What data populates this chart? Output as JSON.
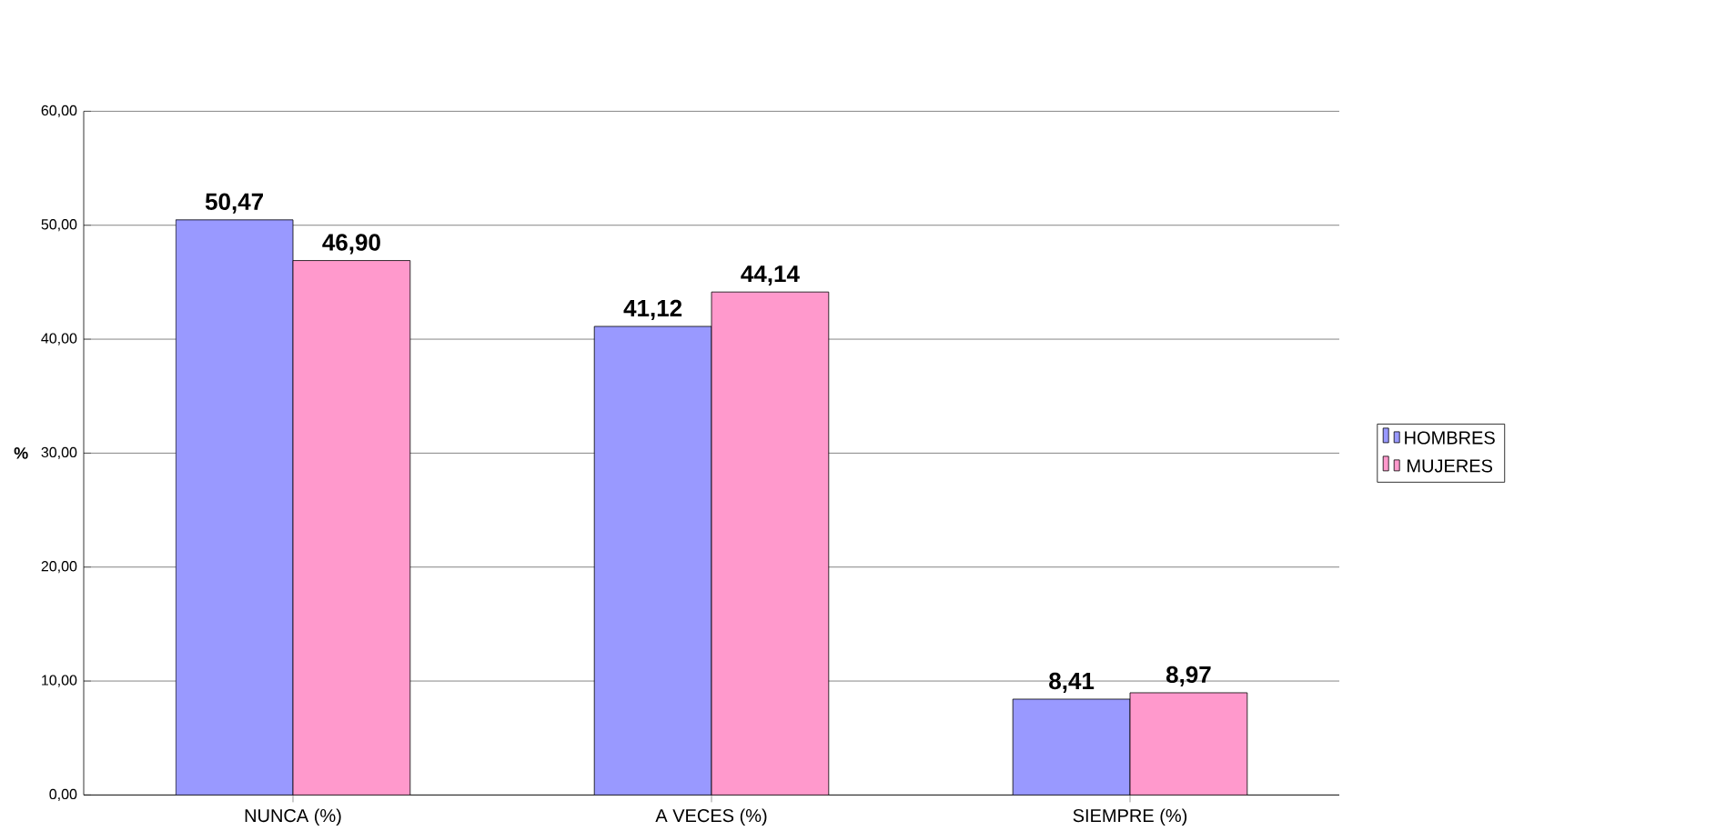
{
  "chart_data": {
    "type": "bar",
    "ylabel": "%",
    "categories": [
      "NUNCA (%)",
      "A VECES (%)",
      "SIEMPRE (%)"
    ],
    "series": [
      {
        "name": "HOMBRES",
        "color": "#9999ff",
        "values": [
          50.47,
          41.12,
          8.41
        ],
        "value_labels": [
          "50,47",
          "41,12",
          "8,41"
        ]
      },
      {
        "name": "MUJERES",
        "color": "#ff99cc",
        "values": [
          46.9,
          44.14,
          8.97
        ],
        "value_labels": [
          "46,90",
          "44,14",
          "8,97"
        ]
      }
    ],
    "ylim": [
      0,
      60
    ],
    "yticks": [
      {
        "value": 0,
        "label": "0,00"
      },
      {
        "value": 10,
        "label": "10,00"
      },
      {
        "value": 20,
        "label": "20,00"
      },
      {
        "value": 30,
        "label": "30,00"
      },
      {
        "value": 40,
        "label": "40,00"
      },
      {
        "value": 50,
        "label": "50,00"
      },
      {
        "value": 60,
        "label": "60,00"
      }
    ],
    "grid": "y",
    "legend": "right"
  }
}
